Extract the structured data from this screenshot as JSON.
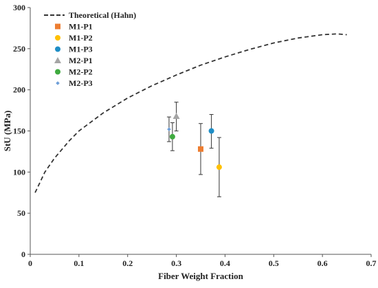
{
  "chart_data": {
    "type": "scatter",
    "title": "",
    "xlabel": "Fiber Weight Fraction",
    "ylabel": "StU (MPa)",
    "xlim": [
      0,
      0.7
    ],
    "ylim": [
      0,
      300
    ],
    "xticks": [
      "0",
      "0.1",
      "0.2",
      "0.3",
      "0.4",
      "0.5",
      "0.6",
      "0.7"
    ],
    "yticks": [
      "0",
      "50",
      "100",
      "150",
      "200",
      "250",
      "300"
    ],
    "grid": false,
    "legend_position": "top-left",
    "series": [
      {
        "name": "Theoretical (Hahn)",
        "kind": "dashed-line",
        "color": "#333333",
        "x": [
          0.01,
          0.03,
          0.05,
          0.08,
          0.1,
          0.15,
          0.2,
          0.25,
          0.3,
          0.35,
          0.4,
          0.45,
          0.5,
          0.55,
          0.6,
          0.63,
          0.65
        ],
        "y": [
          75,
          100,
          117,
          138,
          150,
          172,
          190,
          205,
          218,
          230,
          240,
          249,
          257,
          263,
          267,
          268,
          267
        ]
      },
      {
        "name": "M1-P1",
        "marker": "square",
        "color": "#ed7d31",
        "x": [
          0.35
        ],
        "y": [
          128
        ],
        "err_low": [
          97
        ],
        "err_high": [
          159
        ]
      },
      {
        "name": "M1-P2",
        "marker": "circle",
        "color": "#ffc000",
        "x": [
          0.388
        ],
        "y": [
          106
        ],
        "err_low": [
          70
        ],
        "err_high": [
          142
        ]
      },
      {
        "name": "M1-P3",
        "marker": "circle",
        "color": "#1f8ec6",
        "x": [
          0.372
        ],
        "y": [
          150
        ],
        "err_low": [
          129
        ],
        "err_high": [
          170
        ]
      },
      {
        "name": "M2-P1",
        "marker": "triangle",
        "color": "#a5a5a5",
        "x": [
          0.3
        ],
        "y": [
          168
        ],
        "err_low": [
          150
        ],
        "err_high": [
          185
        ]
      },
      {
        "name": "M2-P2",
        "marker": "circle",
        "color": "#3faa3f",
        "x": [
          0.292
        ],
        "y": [
          143
        ],
        "err_low": [
          126
        ],
        "err_high": [
          160
        ]
      },
      {
        "name": "M2-P3",
        "marker": "diamond",
        "color": "#6f9fd8",
        "x": [
          0.285
        ],
        "y": [
          152
        ],
        "err_low": [
          137
        ],
        "err_high": [
          167
        ]
      }
    ]
  }
}
